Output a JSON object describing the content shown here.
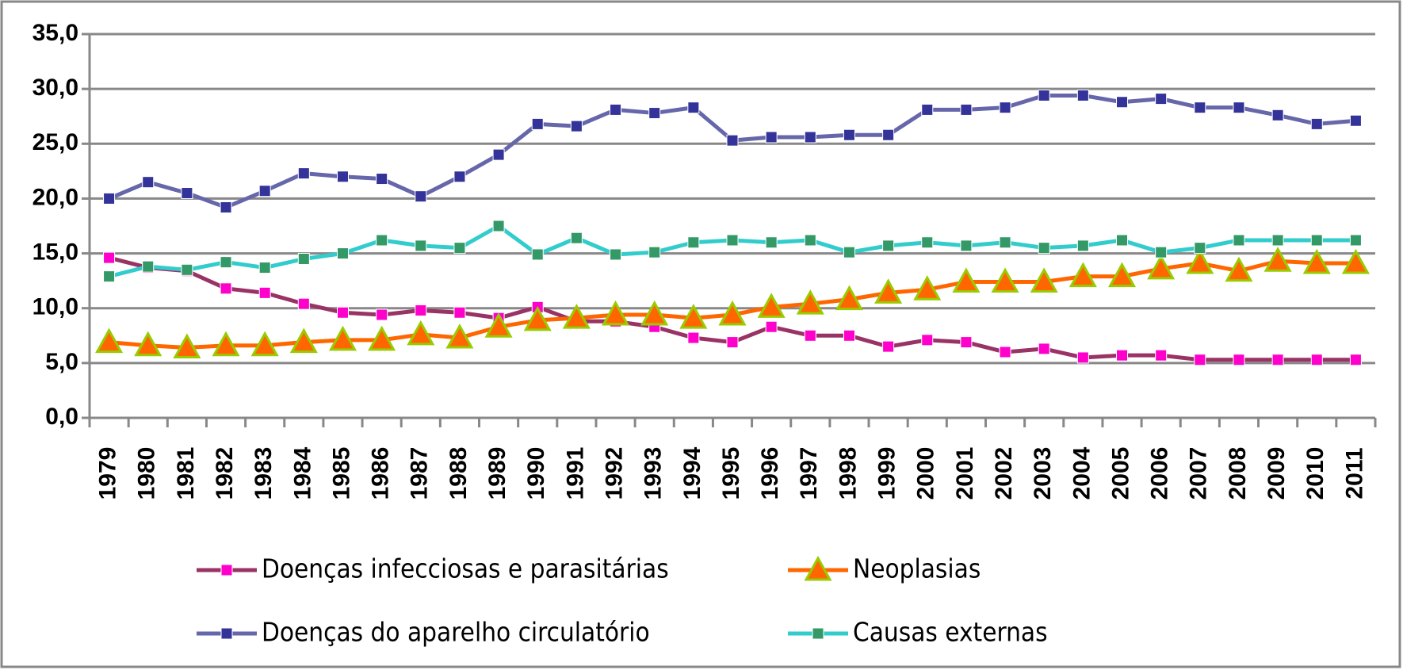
{
  "chart_data": {
    "type": "line",
    "categories": [
      "1979",
      "1980",
      "1981",
      "1982",
      "1983",
      "1984",
      "1985",
      "1986",
      "1987",
      "1988",
      "1989",
      "1990",
      "1991",
      "1992",
      "1993",
      "1994",
      "1995",
      "1996",
      "1997",
      "1998",
      "1999",
      "2000",
      "2001",
      "2002",
      "2003",
      "2004",
      "2005",
      "2006",
      "2007",
      "2008",
      "2009",
      "2010",
      "2011"
    ],
    "series": [
      {
        "name": "Doenças infecciosas e parasitárias",
        "color": "#993366",
        "marker_color": "#ff00cc",
        "marker": "square",
        "values": [
          14.6,
          13.7,
          13.4,
          11.8,
          11.4,
          10.4,
          9.6,
          9.4,
          9.8,
          9.6,
          9.1,
          10.1,
          8.8,
          8.8,
          8.3,
          7.3,
          6.9,
          8.3,
          7.5,
          7.5,
          6.5,
          7.1,
          6.9,
          6.0,
          6.3,
          5.5,
          5.7,
          5.7,
          5.3,
          5.3,
          5.3,
          5.3,
          5.3
        ]
      },
      {
        "name": "Neoplasias",
        "color": "#ff6600",
        "marker_color": "#ff6600",
        "marker_edge": "#99cc00",
        "marker": "triangle",
        "values": [
          6.9,
          6.6,
          6.4,
          6.6,
          6.6,
          6.9,
          7.1,
          7.1,
          7.6,
          7.3,
          8.3,
          8.9,
          9.1,
          9.4,
          9.4,
          9.1,
          9.4,
          10.1,
          10.4,
          10.8,
          11.4,
          11.7,
          12.4,
          12.4,
          12.4,
          12.9,
          12.9,
          13.6,
          14.1,
          13.4,
          14.3,
          14.1,
          14.1
        ]
      },
      {
        "name": "Doenças do aparelho circulatório",
        "color": "#6666aa",
        "marker_color": "#333399",
        "marker": "square",
        "values": [
          20.0,
          21.5,
          20.5,
          19.2,
          20.7,
          22.3,
          22.0,
          21.8,
          20.2,
          22.0,
          24.0,
          26.8,
          26.6,
          28.1,
          27.8,
          28.3,
          25.3,
          25.6,
          25.6,
          25.8,
          25.8,
          28.1,
          28.1,
          28.3,
          29.4,
          29.4,
          28.8,
          29.1,
          28.3,
          28.3,
          27.6,
          26.8,
          27.1
        ]
      },
      {
        "name": "Causas externas",
        "color": "#33cccc",
        "marker_color": "#339966",
        "marker": "square",
        "values": [
          12.9,
          13.8,
          13.5,
          14.2,
          13.7,
          14.5,
          15.0,
          16.2,
          15.7,
          15.5,
          17.5,
          14.9,
          16.4,
          14.9,
          15.1,
          16.0,
          16.2,
          16.0,
          16.2,
          15.1,
          15.7,
          16.0,
          15.7,
          16.0,
          15.5,
          15.7,
          16.2,
          15.1,
          15.5,
          16.2,
          16.2,
          16.2,
          16.2
        ]
      }
    ],
    "ylim": [
      0,
      35
    ],
    "yticks": [
      {
        "value": 0,
        "label": "0,0"
      },
      {
        "value": 5,
        "label": "5,0"
      },
      {
        "value": 10,
        "label": "10,0"
      },
      {
        "value": 15,
        "label": "15,0"
      },
      {
        "value": 20,
        "label": "20,0"
      },
      {
        "value": 25,
        "label": "25,0"
      },
      {
        "value": 30,
        "label": "30,0"
      },
      {
        "value": 35,
        "label": "35,0"
      }
    ],
    "grid": true,
    "legend": "bottom"
  }
}
